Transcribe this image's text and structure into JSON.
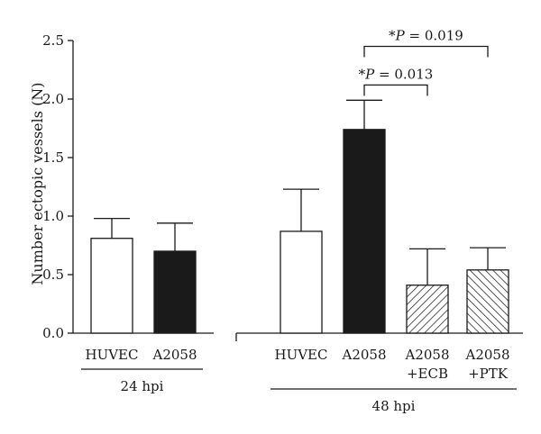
{
  "chart_data": {
    "type": "bar",
    "ylabel": "Number ectopic vessels (N)",
    "ylim": [
      0,
      2.5
    ],
    "yticks": [
      "0.0",
      "0.5",
      "1.0",
      "1.5",
      "2.0",
      "2.5"
    ],
    "bars": [
      {
        "label": "HUVEC",
        "sublabel": "",
        "value": 0.81,
        "error": 0.17,
        "fill": "white"
      },
      {
        "label": "A2058",
        "sublabel": "",
        "value": 0.7,
        "error": 0.24,
        "fill": "black"
      },
      {
        "label": "HUVEC",
        "sublabel": "",
        "value": 0.87,
        "error": 0.36,
        "fill": "white"
      },
      {
        "label": "A2058",
        "sublabel": "",
        "value": 1.74,
        "error": 0.25,
        "fill": "black"
      },
      {
        "label": "A2058",
        "sublabel": "+ECB",
        "value": 0.41,
        "error": 0.31,
        "fill": "hatch-forward"
      },
      {
        "label": "A2058",
        "sublabel": "+PTK",
        "value": 0.54,
        "error": 0.19,
        "fill": "hatch-backward"
      }
    ],
    "groups": [
      {
        "label": "24 hpi",
        "bars": [
          0,
          1
        ]
      },
      {
        "label": "48 hpi",
        "bars": [
          2,
          3,
          4,
          5
        ]
      }
    ],
    "significance": [
      {
        "from": 3,
        "to": 4,
        "star": "*",
        "text": "P = 0.013",
        "level": 2.12
      },
      {
        "from": 3,
        "to": 5,
        "star": "*",
        "text": "P = 0.019",
        "level": 2.45
      }
    ]
  },
  "colors": {
    "axis": "#1a1a1a",
    "bar_dark": "#1a1a1a",
    "bar_light": "#ffffff"
  }
}
